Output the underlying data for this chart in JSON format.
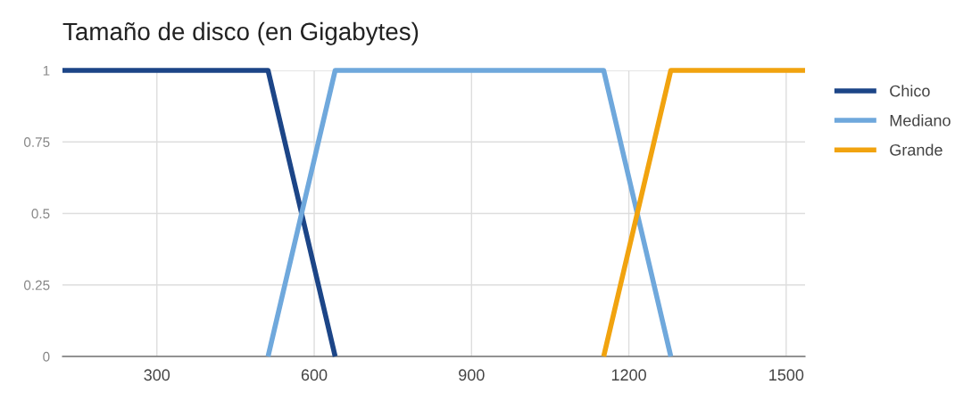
{
  "chart_data": {
    "type": "line",
    "title": "Tamaño de disco (en Gigabytes)",
    "series": [
      {
        "name": "Chico",
        "color": "#1c4587",
        "x": [
          120,
          512,
          640
        ],
        "values": [
          1,
          1,
          0
        ]
      },
      {
        "name": "Mediano",
        "color": "#6fa8dc",
        "x": [
          512,
          640,
          1152,
          1280
        ],
        "values": [
          0,
          1,
          1,
          0
        ]
      },
      {
        "name": "Grande",
        "color": "#f1a30f",
        "x": [
          1152,
          1280,
          1536
        ],
        "values": [
          0,
          1,
          1
        ]
      }
    ],
    "xlim": [
      120,
      1536
    ],
    "xticks": [
      300,
      600,
      900,
      1200,
      1500
    ],
    "ylim": [
      0,
      1
    ],
    "yticks": [
      0,
      0.25,
      0.5,
      0.75,
      1
    ],
    "grid": true,
    "legend": "right",
    "marker": "none",
    "line_style": "solid"
  }
}
